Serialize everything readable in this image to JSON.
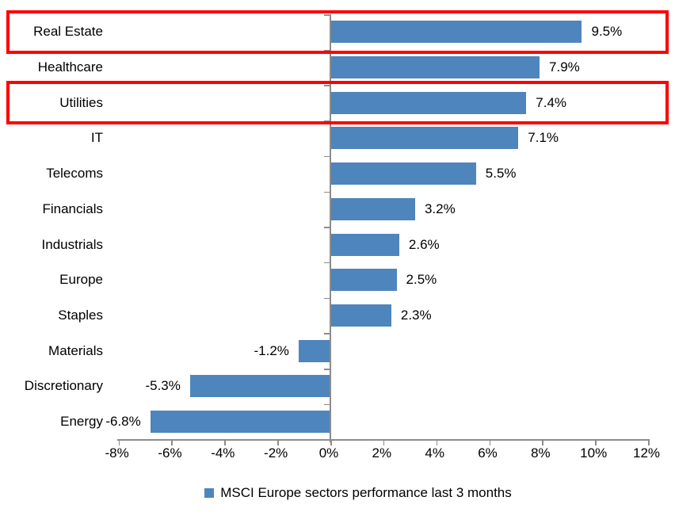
{
  "chart_data": {
    "type": "bar",
    "orientation": "horizontal",
    "title": "",
    "xlabel": "",
    "ylabel": "",
    "categories": [
      "Real Estate",
      "Healthcare",
      "Utilities",
      "IT",
      "Telecoms",
      "Financials",
      "Industrials",
      "Europe",
      "Staples",
      "Materials",
      "Discretionary",
      "Energy"
    ],
    "values": [
      9.5,
      7.9,
      7.4,
      7.1,
      5.5,
      3.2,
      2.6,
      2.5,
      2.3,
      -1.2,
      -5.3,
      -6.8
    ],
    "value_labels": [
      "9.5%",
      "7.9%",
      "7.4%",
      "7.1%",
      "5.5%",
      "3.2%",
      "2.6%",
      "2.5%",
      "2.3%",
      "-1.2%",
      "-5.3%",
      "-6.8%"
    ],
    "x_ticks": [
      "-8%",
      "-6%",
      "-4%",
      "-2%",
      "0%",
      "2%",
      "4%",
      "6%",
      "8%",
      "10%",
      "12%"
    ],
    "x_tick_values": [
      -8,
      -6,
      -4,
      -2,
      0,
      2,
      4,
      6,
      8,
      10,
      12
    ],
    "xlim": [
      -8,
      12
    ],
    "grid": "off",
    "legend": "MSCI Europe sectors performance last 3 months",
    "legend_position": "bottom-center",
    "highlighted_categories": [
      "Real Estate",
      "Utilities"
    ],
    "colors": {
      "bar": "#4E85BC",
      "axis": "#8C8C8C",
      "highlight": "#FF0000",
      "text": "#000000",
      "background": "#FFFFFF"
    }
  }
}
